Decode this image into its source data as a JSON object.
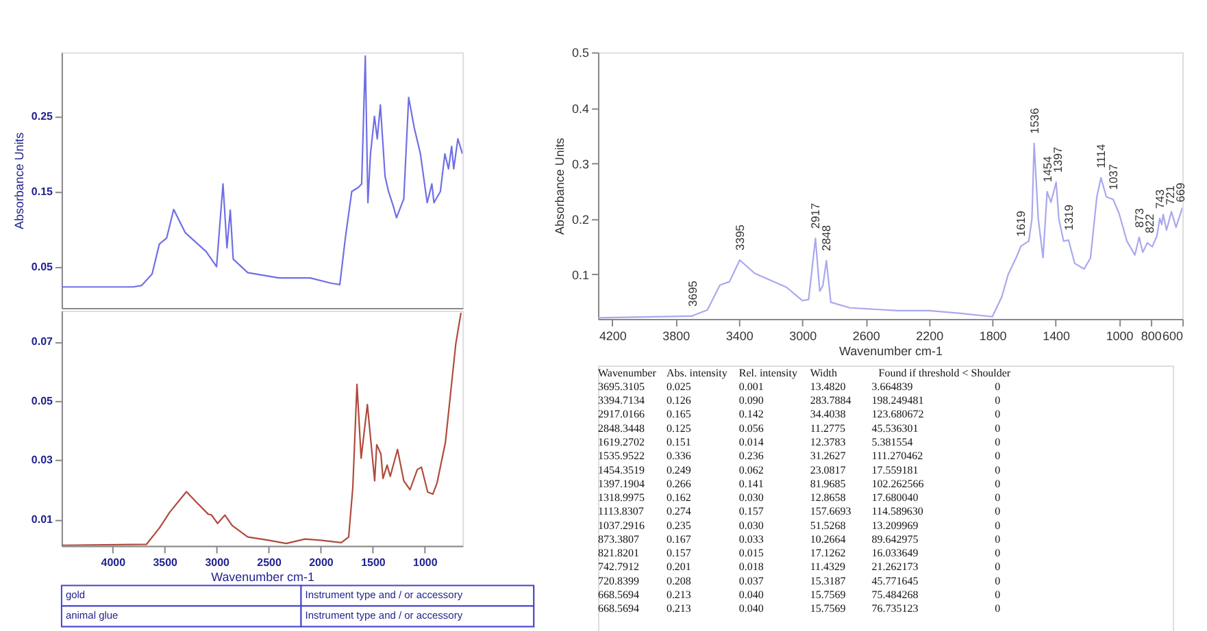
{
  "chart_data": [
    {
      "type": "line",
      "ylabel": "Absorbance Units",
      "xlim": [
        4490,
        635
      ],
      "ylim": [
        -0.005,
        0.335
      ],
      "yticks": [
        0.05,
        0.15,
        0.25
      ],
      "xticks": [
        4000,
        3500,
        3000,
        2500,
        2000,
        1500,
        1000
      ],
      "tick_labels": "y",
      "grid": false,
      "series": [
        {
          "color": "#6f6fe6",
          "x": [
            4490,
            3800,
            3720,
            3620,
            3550,
            3480,
            3412,
            3300,
            3100,
            3000,
            2938,
            2900,
            2868,
            2840,
            2700,
            2400,
            2100,
            1900,
            1815,
            1760,
            1700,
            1640,
            1605,
            1570,
            1545,
            1520,
            1482,
            1455,
            1425,
            1380,
            1347,
            1300,
            1270,
            1200,
            1153,
            1100,
            1040,
            975,
            930,
            910,
            848,
            805,
            770,
            740,
            720,
            680,
            636
          ],
          "values": [
            0.023,
            0.023,
            0.025,
            0.04,
            0.08,
            0.088,
            0.126,
            0.095,
            0.07,
            0.05,
            0.16,
            0.075,
            0.125,
            0.06,
            0.042,
            0.035,
            0.035,
            0.028,
            0.026,
            0.09,
            0.15,
            0.155,
            0.16,
            0.33,
            0.135,
            0.2,
            0.25,
            0.22,
            0.265,
            0.17,
            0.15,
            0.13,
            0.115,
            0.14,
            0.275,
            0.235,
            0.2,
            0.135,
            0.16,
            0.135,
            0.15,
            0.2,
            0.18,
            0.21,
            0.18,
            0.22,
            0.2
          ]
        }
      ]
    },
    {
      "type": "line",
      "xlabel": "Wavenumber cm-1",
      "xlim": [
        4490,
        635
      ],
      "ylim": [
        0.001,
        0.0805
      ],
      "yticks": [
        0.01,
        0.03,
        0.05,
        0.07
      ],
      "xticks": [
        4000,
        3500,
        3000,
        2500,
        2000,
        1500,
        1000
      ],
      "grid": false,
      "series": [
        {
          "color": "#b04a3c",
          "x": [
            4487,
            3675,
            3550,
            3450,
            3290,
            3200,
            3080,
            3050,
            2990,
            2920,
            2850,
            2700,
            2500,
            2330,
            2150,
            2000,
            1800,
            1730,
            1690,
            1650,
            1610,
            1550,
            1480,
            1460,
            1420,
            1400,
            1360,
            1330,
            1260,
            1200,
            1140,
            1070,
            1030,
            970,
            920,
            880,
            800,
            700,
            650
          ],
          "values": [
            0.0012,
            0.0015,
            0.007,
            0.0124,
            0.0193,
            0.016,
            0.0117,
            0.0115,
            0.0086,
            0.0114,
            0.0079,
            0.004,
            0.0029,
            0.0018,
            0.0033,
            0.0029,
            0.0021,
            0.004,
            0.0208,
            0.0556,
            0.0306,
            0.0488,
            0.023,
            0.0352,
            0.0321,
            0.0238,
            0.0283,
            0.0245,
            0.0336,
            0.023,
            0.02,
            0.0268,
            0.0276,
            0.0192,
            0.0185,
            0.0223,
            0.0359,
            0.0693,
            0.0798
          ]
        }
      ]
    },
    {
      "type": "other",
      "annotations": [
        "gold",
        "Instrument type and / or accessory",
        "animal glue",
        "Instrument type and / or accessory"
      ]
    },
    {
      "type": "line",
      "xlabel": "Wavenumber cm-1",
      "ylabel": "Absorbance Units",
      "xlim": [
        4290,
        600
      ],
      "ylim": [
        0.02,
        0.5
      ],
      "yticks": [
        0.1,
        0.2,
        0.3,
        0.4,
        0.5
      ],
      "xticks": [
        4200,
        3800,
        3400,
        3000,
        2600,
        2200,
        1800,
        1400,
        1000,
        800,
        600
      ],
      "grid": false,
      "series": [
        {
          "color": "#a8a8ee",
          "x": [
            4290,
            3700,
            3600,
            3520,
            3460,
            3395,
            3300,
            3100,
            3000,
            2960,
            2917,
            2890,
            2870,
            2848,
            2820,
            2700,
            2400,
            2200,
            2000,
            1800,
            1740,
            1700,
            1650,
            1619,
            1570,
            1550,
            1536,
            1510,
            1480,
            1454,
            1430,
            1397,
            1380,
            1350,
            1319,
            1280,
            1220,
            1180,
            1140,
            1114,
            1080,
            1037,
            1000,
            950,
            900,
            873,
            850,
            821,
            790,
            760,
            743,
            730,
            721,
            700,
            669,
            640,
            600
          ],
          "values": [
            0.022,
            0.025,
            0.036,
            0.081,
            0.087,
            0.126,
            0.102,
            0.077,
            0.053,
            0.055,
            0.165,
            0.07,
            0.08,
            0.125,
            0.05,
            0.04,
            0.035,
            0.035,
            0.03,
            0.024,
            0.06,
            0.1,
            0.13,
            0.151,
            0.16,
            0.2,
            0.336,
            0.2,
            0.13,
            0.249,
            0.23,
            0.266,
            0.2,
            0.16,
            0.162,
            0.12,
            0.11,
            0.13,
            0.24,
            0.274,
            0.24,
            0.235,
            0.21,
            0.16,
            0.135,
            0.167,
            0.14,
            0.157,
            0.15,
            0.17,
            0.201,
            0.19,
            0.208,
            0.18,
            0.213,
            0.185,
            0.22
          ]
        }
      ],
      "annotations": [
        {
          "text": "3695",
          "x": 3695,
          "y": 0.025
        },
        {
          "text": "3395",
          "x": 3395,
          "y": 0.126
        },
        {
          "text": "2917",
          "x": 2917,
          "y": 0.165
        },
        {
          "text": "2848",
          "x": 2848,
          "y": 0.125
        },
        {
          "text": "1619",
          "x": 1619,
          "y": 0.151
        },
        {
          "text": "1536",
          "x": 1536,
          "y": 0.336
        },
        {
          "text": "1454",
          "x": 1454,
          "y": 0.249
        },
        {
          "text": "1397",
          "x": 1397,
          "y": 0.266
        },
        {
          "text": "1319",
          "x": 1319,
          "y": 0.162
        },
        {
          "text": "1114",
          "x": 1114,
          "y": 0.274
        },
        {
          "text": "1037",
          "x": 1037,
          "y": 0.235
        },
        {
          "text": "873",
          "x": 873,
          "y": 0.167
        },
        {
          "text": "822",
          "x": 822,
          "y": 0.157
        },
        {
          "text": "743",
          "x": 743,
          "y": 0.201
        },
        {
          "text": "721",
          "x": 721,
          "y": 0.208
        },
        {
          "text": "669",
          "x": 669,
          "y": 0.213
        }
      ]
    },
    {
      "type": "other",
      "annotations": [
        "Wavenumber",
        "Abs. intensity",
        "Rel. intensity",
        "Width",
        "Found if threshold < Shoulder",
        "3695.3105",
        "0.025",
        "0.001",
        "13.4820",
        "3.664839",
        "0",
        "3394.7134",
        "0.126",
        "0.090",
        "283.7884",
        "198.249481",
        "0",
        "2917.0166",
        "0.165",
        "0.142",
        "34.4038",
        "123.680672",
        "0",
        "2848.3448",
        "0.125",
        "0.056",
        "11.2775",
        "45.536301",
        "0",
        "1619.2702",
        "0.151",
        "0.014",
        "12.3783",
        "5.381554",
        "0",
        "1535.9522",
        "0.336",
        "0.236",
        "31.2627",
        "111.270462",
        "0",
        "1454.3519",
        "0.249",
        "0.062",
        "23.0817",
        "17.559181",
        "0",
        "1397.1904",
        "0.266",
        "0.141",
        "81.9685",
        "102.262566",
        "0",
        "1318.9975",
        "0.162",
        "0.030",
        "12.8658",
        "17.680040",
        "0",
        "1113.8307",
        "0.274",
        "0.157",
        "157.6693",
        "114.589630",
        "0",
        "1037.2916",
        "0.235",
        "0.030",
        "51.5268",
        "13.209969",
        "0",
        "873.3807",
        "0.167",
        "0.033",
        "10.2664",
        "89.642975",
        "0",
        "821.8201",
        "0.157",
        "0.015",
        "17.1262",
        "16.033649",
        "0",
        "742.7912",
        "0.201",
        "0.018",
        "11.4329",
        "21.262173",
        "0",
        "720.8399",
        "0.208",
        "0.037",
        "15.3187",
        "45.771645",
        "0",
        "668.5694",
        "0.213",
        "0.040",
        "15.7569",
        "75.484268",
        "0",
        "668.5694",
        "0.213",
        "0.040",
        "15.7569",
        "76.735123",
        "0"
      ]
    }
  ]
}
